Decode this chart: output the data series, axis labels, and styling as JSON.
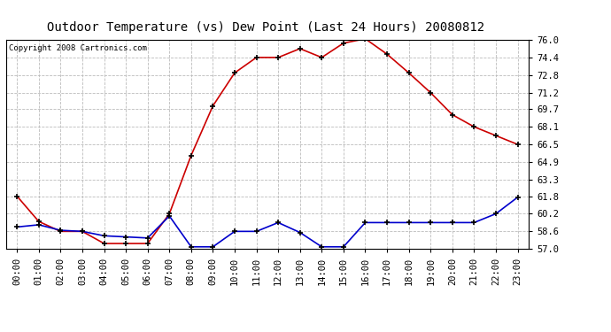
{
  "title": "Outdoor Temperature (vs) Dew Point (Last 24 Hours) 20080812",
  "copyright": "Copyright 2008 Cartronics.com",
  "x_labels": [
    "00:00",
    "01:00",
    "02:00",
    "03:00",
    "04:00",
    "05:00",
    "06:00",
    "07:00",
    "08:00",
    "09:00",
    "10:00",
    "11:00",
    "12:00",
    "13:00",
    "14:00",
    "15:00",
    "16:00",
    "17:00",
    "18:00",
    "19:00",
    "20:00",
    "21:00",
    "22:00",
    "23:00"
  ],
  "temp_values": [
    61.8,
    59.5,
    58.6,
    58.6,
    57.5,
    57.5,
    57.5,
    60.2,
    65.5,
    70.0,
    73.0,
    74.4,
    74.4,
    75.2,
    74.4,
    75.7,
    76.1,
    74.7,
    73.0,
    71.2,
    69.2,
    68.1,
    67.3,
    66.5
  ],
  "dew_values": [
    59.0,
    59.2,
    58.7,
    58.6,
    58.2,
    58.1,
    58.0,
    60.0,
    57.2,
    57.2,
    58.6,
    58.6,
    59.4,
    58.5,
    57.2,
    57.2,
    59.4,
    59.4,
    59.4,
    59.4,
    59.4,
    59.4,
    60.2,
    61.7
  ],
  "temp_color": "#cc0000",
  "dew_color": "#0000cc",
  "bg_color": "#ffffff",
  "plot_bg_color": "#ffffff",
  "grid_color": "#bbbbbb",
  "y_ticks": [
    57.0,
    58.6,
    60.2,
    61.8,
    63.3,
    64.9,
    66.5,
    68.1,
    69.7,
    71.2,
    72.8,
    74.4,
    76.0
  ],
  "ylim": [
    57.0,
    76.0
  ],
  "title_fontsize": 10,
  "copyright_fontsize": 6.5,
  "tick_fontsize": 7.5
}
